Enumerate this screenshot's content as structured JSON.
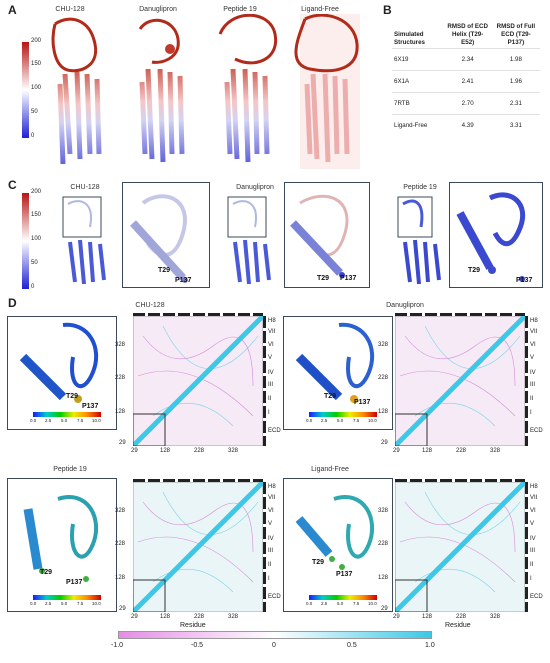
{
  "panel_labels": {
    "a": "A",
    "b": "B",
    "c": "C",
    "d": "D"
  },
  "panel_a": {
    "titles": [
      "CHU-128",
      "Danuglipron",
      "Peptide 19",
      "Ligand-Free"
    ],
    "colorbar_ticks": [
      "200",
      "150",
      "100",
      "50",
      "0"
    ]
  },
  "panel_b": {
    "headers": [
      "Simulated Structures",
      "RMSD of ECD Helix (T29-E52)",
      "RMSD of Full ECD (T29-P137)"
    ],
    "rows": [
      [
        "6X19",
        "2.34",
        "1.98"
      ],
      [
        "6X1A",
        "2.41",
        "1.96"
      ],
      [
        "7RTB",
        "2.70",
        "2.31"
      ],
      [
        "Ligand-Free",
        "4.39",
        "3.31"
      ]
    ]
  },
  "panel_c": {
    "titles": [
      "CHU-128",
      "Danuglipron",
      "Peptide 19"
    ],
    "colorbar_ticks": [
      "200",
      "150",
      "100",
      "50",
      "0"
    ],
    "residue_labels": {
      "start": "T29",
      "end": "P137"
    }
  },
  "panel_d": {
    "titles": [
      "CHU-128",
      "Danuglipron",
      "Peptide 19",
      "Ligand-Free"
    ],
    "axis_ticks": [
      "29",
      "128",
      "228",
      "328"
    ],
    "x_axis_label": "Residue",
    "domain_labels": [
      "H8",
      "VII",
      "VI",
      "V",
      "IV",
      "III",
      "II",
      "I",
      "ECD"
    ],
    "inset_scale_ticks": [
      "0.0",
      "2.5",
      "5.0",
      "7.5",
      "10.0"
    ],
    "residue_labels": {
      "start": "T29",
      "end": "P137"
    }
  },
  "legend": {
    "ticks": [
      "-1.0",
      "-0.5",
      "0",
      "0.5",
      "1.0"
    ],
    "colors": {
      "negative": "#e68ce6",
      "zero": "#ffffff",
      "positive": "#3cc8e6"
    }
  }
}
